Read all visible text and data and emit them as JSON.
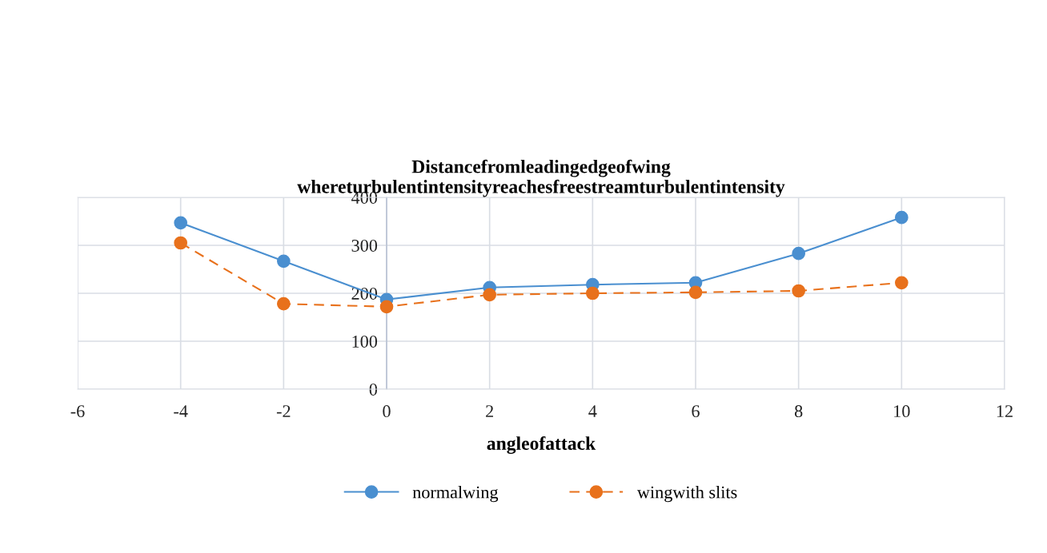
{
  "chart_data": {
    "type": "line",
    "title": "Distancefromleadingedgeofwing\nwhereturbulentintensityreachesfreestreamturbulentintensity",
    "xlabel": "angleofattack",
    "x": [
      -4,
      -2,
      0,
      2,
      4,
      6,
      8,
      10
    ],
    "series": [
      {
        "name": "normalwing",
        "color": "#4a8fd0",
        "line_style": "solid",
        "values": [
          347,
          267,
          187,
          212,
          218,
          222,
          283,
          358
        ]
      },
      {
        "name": "wingwith slits",
        "color": "#e8711c",
        "line_style": "dashed",
        "values": [
          305,
          178,
          172,
          197,
          200,
          202,
          205,
          222
        ]
      }
    ],
    "xlim": [
      -6,
      12
    ],
    "xticks": [
      -6,
      -4,
      -2,
      0,
      2,
      4,
      6,
      8,
      10,
      12
    ],
    "ylim": [
      0,
      400
    ],
    "yticks": [
      0,
      100,
      200,
      300,
      400
    ],
    "grid": true,
    "legend": "bottom",
    "marker": "circle"
  }
}
